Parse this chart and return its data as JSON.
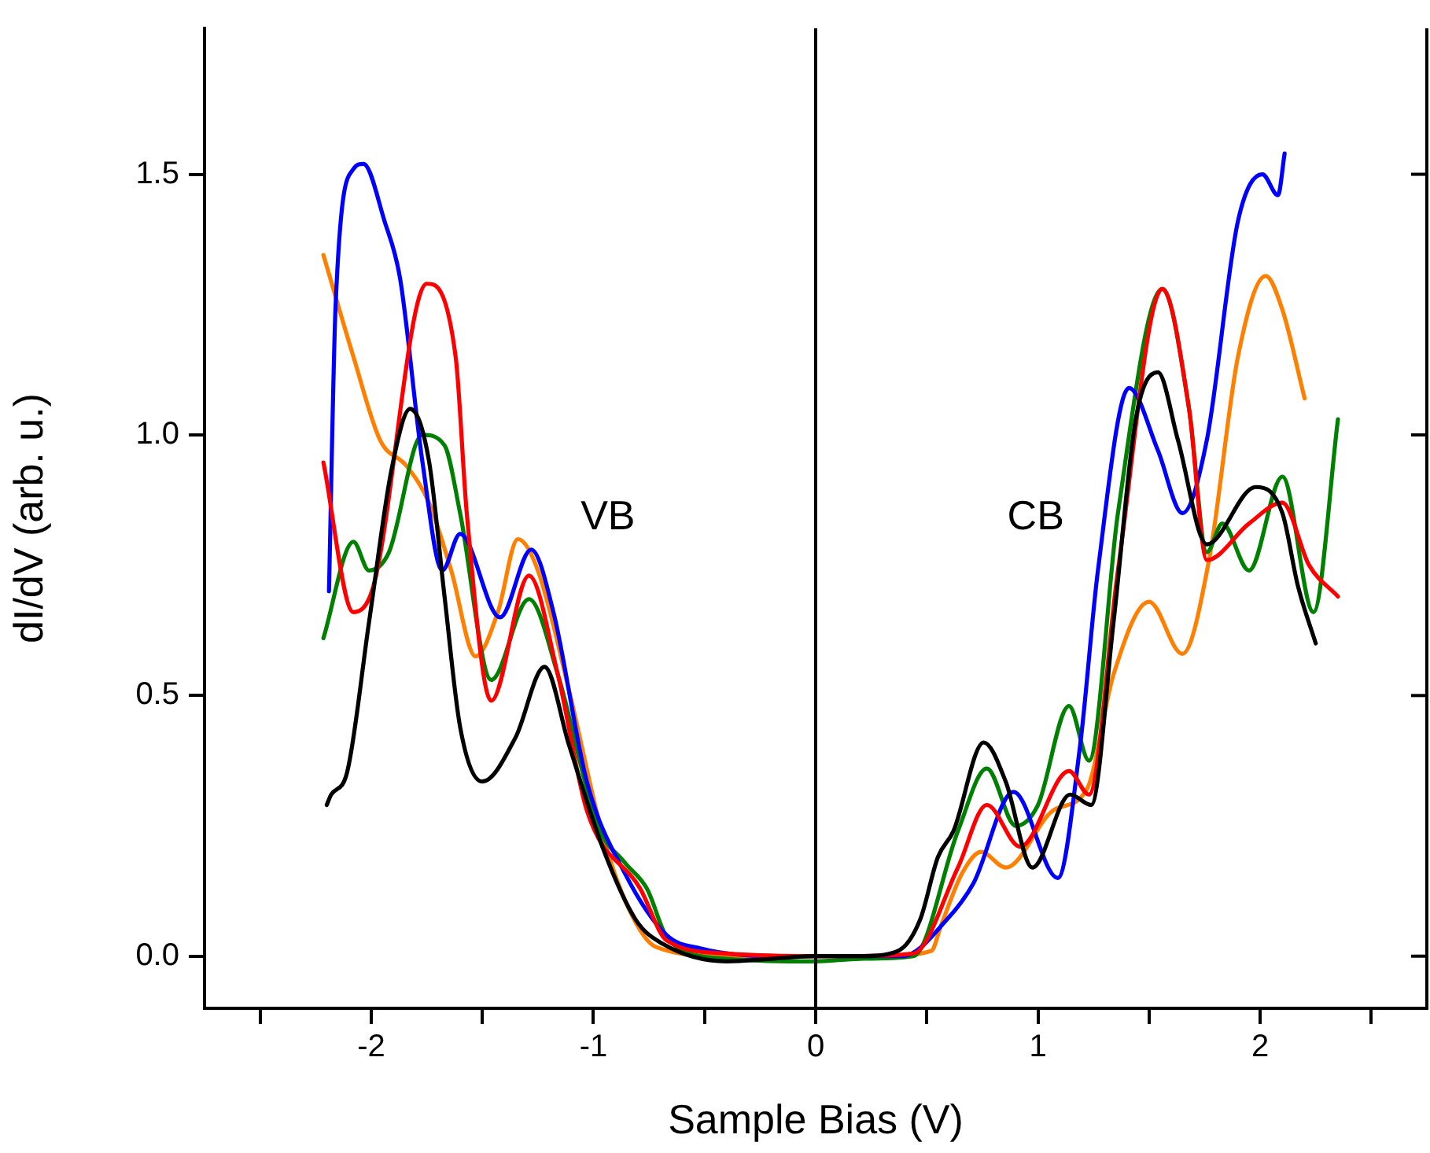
{
  "chart_data": {
    "type": "line",
    "xlabel": "Sample Bias (V)",
    "ylabel": "dI/dV (arb. u.)",
    "xlim": [
      -2.75,
      2.75
    ],
    "ylim": [
      -0.1,
      1.78
    ],
    "xticks": [
      {
        "value": -2.5,
        "label": null
      },
      -2,
      {
        "value": -1.5,
        "label": null
      },
      -1,
      {
        "value": -0.5,
        "label": null
      },
      0,
      {
        "value": 0.5,
        "label": null
      },
      1,
      {
        "value": 1.5,
        "label": null
      },
      2,
      {
        "value": 2.5,
        "label": null
      }
    ],
    "yticks": [
      {
        "value": 0,
        "label": "0.0"
      },
      {
        "value": 0.5,
        "label": "0.5"
      },
      {
        "value": 1,
        "label": "1.0"
      },
      {
        "value": 1.5,
        "label": "1.5"
      }
    ],
    "grid": false,
    "legend": false,
    "marker": "none",
    "line_style": "solid",
    "ref_lines": [
      {
        "axis": "x",
        "value": 0,
        "color": "#000000"
      }
    ],
    "annotations": [
      "VB",
      "CB"
    ],
    "series": [
      {
        "color": "#000000",
        "x": [
          -2.2,
          -2.18,
          -2.11,
          -2.01,
          -1.91,
          -1.825,
          -1.74,
          -1.67,
          -1.6,
          -1.5,
          -1.35,
          -1.22,
          -1.11,
          -0.96,
          -0.81,
          -0.69,
          -0.4,
          -0.2,
          0,
          0.2,
          0.37,
          0.47,
          0.55,
          0.62,
          0.756,
          0.855,
          0.975,
          1.145,
          1.24,
          1.34,
          1.44,
          1.54,
          1.63,
          1.76,
          1.98,
          2.1,
          2.17,
          2.25
        ],
        "values": [
          0.29,
          0.31,
          0.35,
          0.64,
          0.93,
          1.05,
          0.95,
          0.69,
          0.44,
          0.335,
          0.42,
          0.555,
          0.405,
          0.21,
          0.07,
          0.024,
          -0.01,
          -0.005,
          0,
          0,
          0.01,
          0.07,
          0.19,
          0.24,
          0.41,
          0.335,
          0.17,
          0.31,
          0.29,
          0.64,
          1.03,
          1.12,
          0.99,
          0.79,
          0.9,
          0.85,
          0.71,
          0.6
        ]
      },
      {
        "color": "#ff0000",
        "x": [
          -2.215,
          -2.08,
          -1.99,
          -1.75,
          -1.62,
          -1.57,
          -1.46,
          -1.29,
          -1.16,
          -1.03,
          -0.79,
          -0.67,
          -0.4,
          0,
          0.15,
          0.44,
          0.64,
          0.77,
          0.92,
          1.14,
          1.23,
          1.36,
          1.56,
          1.68,
          1.76,
          1.95,
          2.1,
          2.22,
          2.35
        ],
        "values": [
          0.947,
          0.66,
          0.71,
          1.29,
          1.15,
          0.85,
          0.49,
          0.73,
          0.54,
          0.28,
          0.13,
          0.03,
          0.005,
          0,
          0,
          0.005,
          0.17,
          0.29,
          0.21,
          0.355,
          0.31,
          0.74,
          1.28,
          1.05,
          0.76,
          0.83,
          0.87,
          0.75,
          0.69
        ]
      },
      {
        "color": "#0000ff",
        "x": [
          -2.19,
          -2.16,
          -2.08,
          -2.035,
          -1.94,
          -1.87,
          -1.77,
          -1.68,
          -1.6,
          -1.42,
          -1.28,
          -1.18,
          -1.03,
          -0.86,
          -0.67,
          -0.52,
          -0.2,
          0,
          0.2,
          0.39,
          0.59,
          0.71,
          0.89,
          1.09,
          1.19,
          1.27,
          1.41,
          1.54,
          1.65,
          1.76,
          1.9,
          2.01,
          2.08,
          2.11
        ],
        "values": [
          0.7,
          1.25,
          1.51,
          1.52,
          1.41,
          1.3,
          0.95,
          0.74,
          0.81,
          0.65,
          0.78,
          0.66,
          0.335,
          0.16,
          0.04,
          0.015,
          0,
          0,
          0,
          0,
          0.07,
          0.14,
          0.315,
          0.15,
          0.405,
          0.74,
          1.09,
          0.97,
          0.85,
          0.99,
          1.41,
          1.5,
          1.46,
          1.54
        ]
      },
      {
        "color": "#008000",
        "x": [
          -2.215,
          -2.08,
          -2.01,
          -1.92,
          -1.77,
          -1.67,
          -1.6,
          -1.46,
          -1.29,
          -1.16,
          -0.98,
          -0.86,
          -0.76,
          -0.66,
          -0.4,
          0,
          0.2,
          0.44,
          0.64,
          0.77,
          0.9,
          1,
          1.14,
          1.23,
          1.36,
          1.56,
          1.68,
          1.76,
          1.83,
          1.95,
          2.1,
          2.24,
          2.35
        ],
        "values": [
          0.61,
          0.795,
          0.74,
          0.775,
          1,
          0.98,
          0.85,
          0.53,
          0.685,
          0.54,
          0.25,
          0.18,
          0.13,
          0.03,
          -0.005,
          -0.01,
          -0.005,
          0,
          0.24,
          0.36,
          0.25,
          0.29,
          0.48,
          0.375,
          0.85,
          1.28,
          1.05,
          0.775,
          0.83,
          0.74,
          0.92,
          0.66,
          1.03
        ]
      },
      {
        "color": "#ff8000",
        "x": [
          -2.215,
          -2.08,
          -1.96,
          -1.84,
          -1.74,
          -1.64,
          -1.53,
          -1.43,
          -1.34,
          -1.25,
          -1.11,
          -0.96,
          -0.84,
          -0.72,
          -0.4,
          0,
          0.3,
          0.52,
          0.565,
          0.66,
          0.745,
          0.855,
          1.07,
          1.22,
          1.34,
          1.5,
          1.65,
          1.77,
          1.9,
          2.025,
          2.1,
          2.2
        ],
        "values": [
          1.345,
          1.15,
          0.99,
          0.94,
          0.87,
          0.74,
          0.575,
          0.66,
          0.8,
          0.74,
          0.51,
          0.235,
          0.09,
          0.018,
          0,
          0,
          0,
          0.01,
          0.06,
          0.16,
          0.2,
          0.17,
          0.28,
          0.32,
          0.54,
          0.68,
          0.58,
          0.76,
          1.15,
          1.305,
          1.24,
          1.07
        ]
      }
    ]
  }
}
